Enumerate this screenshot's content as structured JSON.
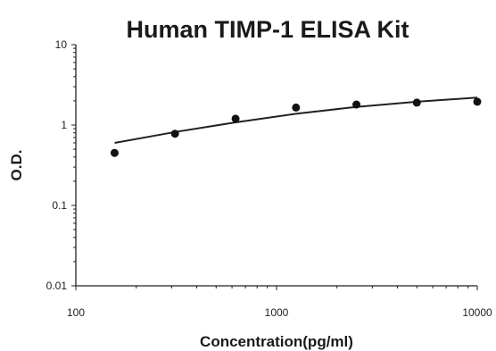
{
  "chart_data": {
    "type": "scatter",
    "title": "Human TIMP-1 ELISA Kit",
    "xlabel": "Concentration(pg/ml)",
    "ylabel": "O.D.",
    "x_scale": "log",
    "y_scale": "log",
    "xlim": [
      100,
      10000
    ],
    "ylim": [
      0.01,
      10
    ],
    "x_ticks": [
      {
        "value": 100,
        "label": "100"
      },
      {
        "value": 1000,
        "label": "1000"
      },
      {
        "value": 10000,
        "label": "10000"
      }
    ],
    "y_ticks": [
      {
        "value": 10,
        "label": "10"
      },
      {
        "value": 1,
        "label": "1"
      },
      {
        "value": 0.1,
        "label": "0.1"
      },
      {
        "value": 0.01,
        "label": "0.01"
      }
    ],
    "grid": false,
    "points": {
      "x": [
        156,
        312,
        625,
        1250,
        2500,
        5000,
        10000
      ],
      "y": [
        0.45,
        0.78,
        1.2,
        1.65,
        1.8,
        1.9,
        1.95
      ]
    },
    "fit_curve": {
      "x": [
        156,
        312,
        625,
        1250,
        2500,
        5000,
        10000
      ],
      "y": [
        0.6,
        0.82,
        1.08,
        1.38,
        1.68,
        1.95,
        2.2
      ]
    },
    "colors": {
      "axis": "#222222",
      "points": "#111111",
      "curve": "#222222"
    }
  }
}
